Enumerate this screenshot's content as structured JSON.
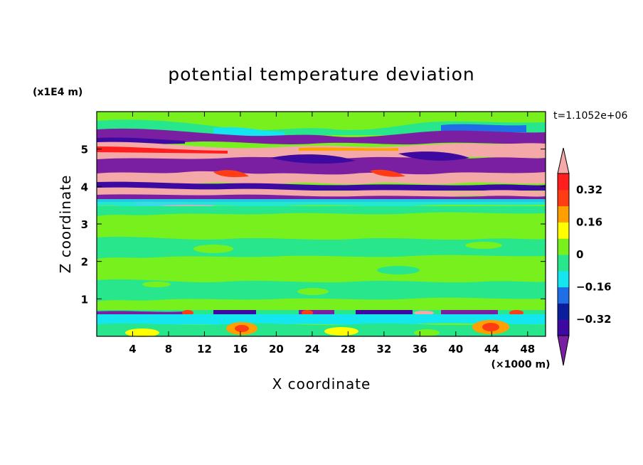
{
  "chart_data": {
    "type": "heatmap",
    "title": "potential temperature deviation",
    "xlabel": "X coordinate",
    "ylabel": "Z coordinate",
    "x_unit": "(×1000 m)",
    "y_unit": "(x1E4 m)",
    "time_label": "t=1.1052e+06",
    "xlim": [
      0,
      50
    ],
    "ylim": [
      0,
      6
    ],
    "x_ticks": [
      4,
      8,
      12,
      16,
      20,
      24,
      28,
      32,
      36,
      40,
      44,
      48
    ],
    "y_ticks": [
      1,
      2,
      3,
      4,
      5
    ],
    "colorbar": {
      "levels": [
        -0.4,
        -0.32,
        -0.24,
        -0.16,
        -0.08,
        0,
        0.08,
        0.16,
        0.24,
        0.32,
        0.4
      ],
      "tick_labels": [
        "0.32",
        "0.16",
        "0",
        "−0.16",
        "−0.32"
      ],
      "tick_values": [
        0.32,
        0.16,
        0,
        -0.16,
        -0.32
      ],
      "colors": [
        "#7a1fa2",
        "#3c0aa0",
        "#0a1e9c",
        "#1f6ee6",
        "#14e6f0",
        "#28e68c",
        "#78f01e",
        "#ffff00",
        "#ffa000",
        "#ff3c14",
        "#ff1e1e",
        "#f5a8a8"
      ]
    },
    "bands": [
      {
        "z_range": [
          5.5,
          6.0
        ],
        "value": 0.04,
        "note": "green"
      },
      {
        "z_range": [
          5.3,
          5.5
        ],
        "value": -0.45
      },
      {
        "z_range": [
          4.9,
          5.2
        ],
        "value": 0.45
      },
      {
        "z_range": [
          4.3,
          4.8
        ],
        "value": -0.45
      },
      {
        "z_range": [
          3.7,
          4.3
        ],
        "value": 0.45
      },
      {
        "z_range": [
          0.7,
          3.5
        ],
        "value": 0.04
      },
      {
        "z_range": [
          0.55,
          0.7
        ],
        "value": -0.4
      },
      {
        "z_range": [
          0.0,
          0.5
        ],
        "value": -0.1
      }
    ]
  }
}
